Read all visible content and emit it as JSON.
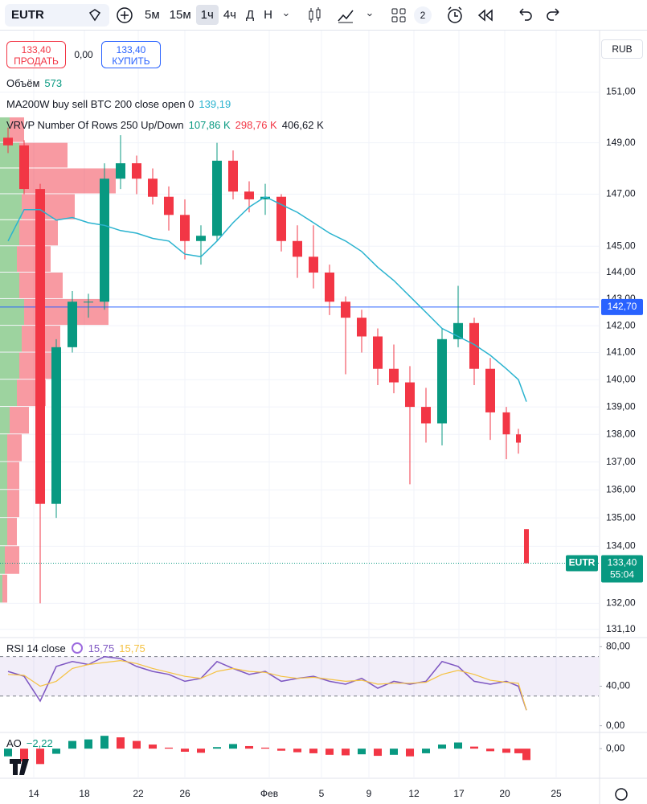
{
  "toolbar": {
    "symbol": "EUTR",
    "intervals": [
      "5м",
      "15м",
      "1ч",
      "4ч",
      "Д",
      "Н"
    ],
    "layout_count": "2"
  },
  "trade": {
    "sell": {
      "price": "133,40",
      "label": "ПРОДАТЬ"
    },
    "spread": "0,00",
    "buy": {
      "price": "133,40",
      "label": "КУПИТЬ"
    }
  },
  "chart_data": [
    {
      "type": "candlestick",
      "currency": "RUB",
      "log": true,
      "grid": true,
      "up_color": "#089981",
      "down_color": "#f23645",
      "x": [
        0,
        1,
        2,
        3,
        4,
        5,
        6,
        7,
        8,
        9,
        10,
        11,
        12,
        13,
        14,
        15,
        16,
        17,
        18,
        19,
        20,
        21,
        22,
        23,
        24,
        25,
        26,
        27,
        28,
        29,
        30,
        31,
        31.75,
        32.25
      ],
      "xlim": [
        -0.5,
        36.75
      ],
      "xticks": [
        {
          "value": 1.6,
          "label": "14"
        },
        {
          "value": 4.75,
          "label": "18"
        },
        {
          "value": 8.1,
          "label": "22"
        },
        {
          "value": 11,
          "label": "26"
        },
        {
          "value": 16.25,
          "label": "Фев"
        },
        {
          "value": 19.5,
          "label": "5"
        },
        {
          "value": 22.45,
          "label": "9"
        },
        {
          "value": 25.25,
          "label": "12"
        },
        {
          "value": 28.05,
          "label": "17"
        },
        {
          "value": 30.9,
          "label": "20"
        },
        {
          "value": 34.1,
          "label": "25"
        }
      ],
      "ylim": [
        130.9,
        153.4
      ],
      "yticks": [
        {
          "value": 151,
          "label": "151,00"
        },
        {
          "value": 149,
          "label": "149,00"
        },
        {
          "value": 147,
          "label": "147,00"
        },
        {
          "value": 145,
          "label": "145,00"
        },
        {
          "value": 144,
          "label": "144,00"
        },
        {
          "value": 143,
          "label": "143,00"
        },
        {
          "value": 142,
          "label": "142,00"
        },
        {
          "value": 141,
          "label": "141,00"
        },
        {
          "value": 140,
          "label": "140,00"
        },
        {
          "value": 139,
          "label": "139,00"
        },
        {
          "value": 138,
          "label": "138,00"
        },
        {
          "value": 137,
          "label": "137,00"
        },
        {
          "value": 136,
          "label": "136,00"
        },
        {
          "value": 135,
          "label": "135,00"
        },
        {
          "value": 134,
          "label": "134,00"
        },
        {
          "value": 132,
          "label": "132,00"
        },
        {
          "value": 131.1,
          "label": "131,10"
        }
      ],
      "open": [
        149.2,
        148.9,
        147.2,
        135.5,
        141.2,
        142.9,
        142.9,
        147.6,
        148.2,
        147.6,
        146.9,
        146.2,
        145.2,
        145.4,
        148.3,
        147.1,
        146.8,
        146.9,
        145.2,
        144.6,
        144.0,
        142.9,
        142.3,
        141.6,
        140.4,
        139.9,
        139.0,
        138.4,
        141.5,
        142.1,
        140.4,
        138.8,
        138.0,
        134.6
      ],
      "high": [
        149.6,
        149.1,
        147.4,
        141.5,
        143.3,
        143.2,
        148.2,
        149.3,
        148.5,
        148.0,
        147.3,
        146.8,
        145.8,
        149.0,
        148.7,
        147.5,
        147.4,
        147.0,
        145.8,
        145.8,
        144.3,
        143.1,
        142.6,
        141.9,
        141.3,
        140.5,
        139.7,
        141.9,
        143.5,
        142.3,
        140.8,
        139.0,
        138.2,
        134.6
      ],
      "low": [
        148.6,
        147.0,
        132.0,
        135.0,
        141.0,
        142.3,
        142.6,
        147.2,
        147.0,
        146.6,
        145.6,
        144.5,
        144.3,
        145.2,
        146.8,
        146.3,
        146.2,
        144.8,
        143.8,
        143.4,
        142.4,
        140.2,
        141.0,
        139.8,
        139.5,
        136.2,
        137.7,
        137.6,
        141.2,
        139.8,
        137.8,
        137.1,
        137.3,
        133.4
      ],
      "close": [
        148.9,
        147.2,
        135.5,
        141.2,
        142.9,
        142.9,
        147.6,
        148.2,
        147.6,
        146.9,
        146.2,
        145.2,
        145.4,
        148.3,
        147.1,
        146.8,
        146.9,
        145.2,
        144.6,
        144.0,
        142.9,
        142.3,
        141.6,
        140.4,
        139.9,
        139.0,
        138.4,
        141.5,
        142.1,
        140.4,
        138.8,
        138.0,
        137.7,
        133.4
      ],
      "series": [
        {
          "name": "MA200W buy sell BTC 200 close open 0",
          "color": "#2ab3cf",
          "value_label": "139,19",
          "values": [
            145.2,
            146.4,
            146.4,
            146.0,
            146.1,
            145.9,
            145.8,
            145.6,
            145.5,
            145.3,
            145.2,
            144.7,
            144.6,
            145.2,
            145.9,
            146.5,
            146.9,
            146.6,
            146.3,
            145.9,
            145.5,
            145.2,
            144.8,
            144.2,
            143.7,
            143.1,
            142.5,
            141.9,
            141.6,
            141.3,
            140.9,
            140.4,
            140.0,
            139.19
          ]
        }
      ],
      "volume": {
        "title": "Объём",
        "value": "573"
      },
      "profile": {
        "title": "VRVP Number Of Rows 250 Up/Down",
        "up_label": "107,86 K",
        "down_label": "298,76 K",
        "total_label": "406,62 K",
        "up_color": "#4caf50",
        "down_color": "#f23645",
        "rows": [
          {
            "price": 149,
            "up": 4,
            "down": 6
          },
          {
            "price": 148,
            "up": 8,
            "down": 20
          },
          {
            "price": 147,
            "up": 10,
            "down": 38
          },
          {
            "price": 146,
            "up": 9,
            "down": 22
          },
          {
            "price": 145,
            "up": 8,
            "down": 16
          },
          {
            "price": 144,
            "up": 7,
            "down": 14
          },
          {
            "price": 143,
            "up": 8,
            "down": 18
          },
          {
            "price": 142,
            "up": 10,
            "down": 35
          },
          {
            "price": 141,
            "up": 9,
            "down": 16
          },
          {
            "price": 140,
            "up": 8,
            "down": 14
          },
          {
            "price": 139,
            "up": 7,
            "down": 12
          },
          {
            "price": 138,
            "up": 4,
            "down": 8
          },
          {
            "price": 137,
            "up": 3,
            "down": 6
          },
          {
            "price": 136,
            "up": 3,
            "down": 5
          },
          {
            "price": 135,
            "up": 3,
            "down": 5
          },
          {
            "price": 134,
            "up": 3,
            "down": 4
          },
          {
            "price": 133,
            "up": 2,
            "down": 6
          },
          {
            "price": 132,
            "up": 1,
            "down": 2
          }
        ]
      },
      "price_line": {
        "value": 142.7,
        "label": "142,70",
        "color": "#2962ff"
      },
      "last_price": {
        "name": "EUTR",
        "value": 133.4,
        "label": "133,40",
        "countdown": "55:04",
        "color": "#089981"
      }
    },
    {
      "type": "line",
      "title": "RSI 14 close",
      "ylim": [
        -6,
        86
      ],
      "band": [
        30,
        70
      ],
      "yticks": [
        {
          "value": 80,
          "label": "80,00"
        },
        {
          "value": 40,
          "label": "40,00"
        },
        {
          "value": 0,
          "label": "0,00"
        }
      ],
      "series": [
        {
          "color": "#7e57c2",
          "value_label": "15,75",
          "values": [
            55,
            50,
            25,
            60,
            65,
            62,
            70,
            68,
            60,
            55,
            52,
            45,
            48,
            65,
            58,
            52,
            55,
            45,
            48,
            50,
            45,
            42,
            48,
            38,
            45,
            42,
            45,
            65,
            60,
            45,
            42,
            45,
            40,
            15.75
          ]
        },
        {
          "color": "#f5c242",
          "value_label": "15,75",
          "values": [
            52,
            51,
            40,
            45,
            58,
            62,
            64,
            66,
            63,
            58,
            54,
            50,
            48,
            55,
            58,
            55,
            54,
            50,
            48,
            49,
            47,
            45,
            46,
            42,
            43,
            43,
            44,
            52,
            56,
            52,
            46,
            44,
            43,
            15.75
          ]
        }
      ]
    },
    {
      "type": "bar",
      "title": "AO",
      "value_label": "−2,22",
      "up_color": "#089981",
      "down_color": "#f23645",
      "ylim": [
        -5.3,
        3
      ],
      "yticks": [
        {
          "value": 0,
          "label": "0,00"
        }
      ],
      "values": [
        -1.5,
        -2.5,
        -3,
        -1,
        1.5,
        1.8,
        2.5,
        2.2,
        1.5,
        0.8,
        0.2,
        -0.6,
        -0.8,
        0.3,
        0.9,
        0.5,
        0.2,
        -0.4,
        -0.7,
        -0.9,
        -1.2,
        -1.3,
        -1.1,
        -1.4,
        -1.2,
        -1.5,
        -0.9,
        0.8,
        1.2,
        0.4,
        -0.5,
        -0.8,
        -0.9,
        -2.22
      ]
    }
  ]
}
